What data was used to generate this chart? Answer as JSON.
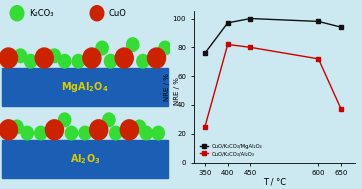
{
  "bg_color": "#cce8f0",
  "left_panel": {
    "legend_items": [
      {
        "label": "K₂CO₃",
        "color": "#33dd33"
      },
      {
        "label": "CuO",
        "color": "#cc2200"
      }
    ],
    "support1": {
      "label": "MgAl₂O₄",
      "color": "#1a5fb4"
    },
    "support2": {
      "label": "Al₂O₃",
      "color": "#1a5fb4"
    },
    "label_color": "#ddcc00",
    "nre_label": "NRE / %"
  },
  "right_panel": {
    "T": [
      350,
      400,
      450,
      600,
      650
    ],
    "MgAl2O4_NRE": [
      76,
      97,
      100,
      98,
      94
    ],
    "Al2O3_NRE": [
      25,
      82,
      80,
      72,
      37
    ],
    "MgAl2O4_color": "#111111",
    "Al2O3_color": "#cc0000",
    "ylabel": "NRE / %",
    "xlabel": "T / °C",
    "xlim": [
      325,
      680
    ],
    "ylim": [
      0,
      105
    ],
    "yticks": [
      0,
      20,
      40,
      60,
      80,
      100
    ],
    "xticks": [
      350,
      400,
      450,
      600,
      650
    ],
    "xtick_labels": [
      "350",
      "400",
      "450",
      "600",
      "650"
    ],
    "legend1": "CuO/K₂CO₃/MgAl₂O₄",
    "legend2": "CuO/K₂CO₃/Al₂O₃"
  }
}
